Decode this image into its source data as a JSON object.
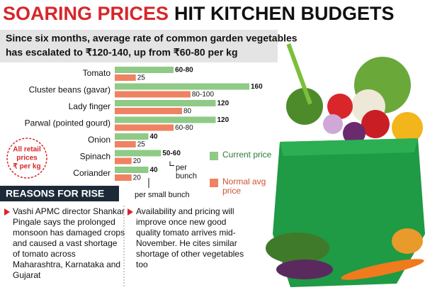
{
  "header": {
    "title_red": "SOARING PRICES",
    "title_black": "HIT KITCHEN BUDGETS"
  },
  "chart_data": {
    "type": "bar",
    "orientation": "horizontal",
    "subtitle_lines": [
      "Since six months, average rate of common garden vegetables",
      "has escalated to ₹120-140, up from ₹60-80 per kg"
    ],
    "categories": [
      "Tomato",
      "Cluster beans (gavar)",
      "Lady finger",
      "Parwal (pointed gourd)",
      "Onion",
      "Spinach",
      "Coriander"
    ],
    "series": [
      {
        "name": "Current price",
        "color": "#8fca86",
        "values": [
          70,
          160,
          120,
          120,
          40,
          55,
          40
        ],
        "value_labels": [
          "60-80",
          "160",
          "120",
          "120",
          "40",
          "50-60",
          "40"
        ]
      },
      {
        "name": "Normal avg price",
        "color": "#ef8262",
        "values": [
          25,
          90,
          80,
          70,
          25,
          20,
          20
        ],
        "value_labels": [
          "25",
          "80-100",
          "80",
          "60-80",
          "25",
          "20",
          "20"
        ]
      }
    ],
    "note_lines": [
      "All retail",
      "prices",
      "₹ per kg"
    ],
    "annotations": [
      {
        "lines": [
          "per",
          "bunch"
        ]
      },
      {
        "lines": [
          "per small bunch"
        ]
      }
    ]
  },
  "reasons": {
    "title": "REASONS FOR RISE",
    "items": [
      "Vashi APMC director Shankar Pingale says the prolonged monsoon has damaged crops and caused a vast shortage of tomato across Maharashtra, Karnataka and Gujarat",
      "Availability and pricing will improve once new good quality tomato arrives mid-November. He cites similar shortage of other vegetables too"
    ]
  }
}
